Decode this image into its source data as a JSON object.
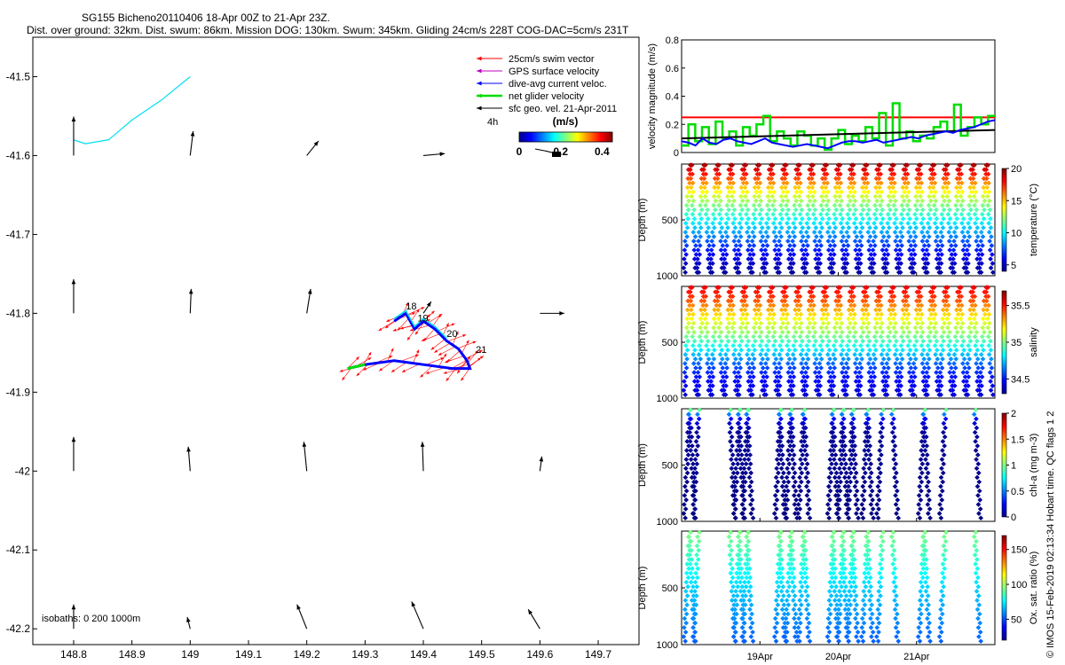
{
  "header": {
    "title": "SG155 Bicheno20110406 18-Apr 00Z to 21-Apr 23Z.",
    "subtitle": "Dist. over ground: 32km. Dist. swum: 86km. Mission DOG: 130km. Swum: 345km. Gliding 24cm/s 228T COG-DAC=5cm/s 231T"
  },
  "credit": "© IMOS 15-Feb-2019 02:13:34 Hobart time. QC flags 1  2",
  "colors": {
    "swim": "#ff0000",
    "gps": "#c000c0",
    "dac": "#0000ff",
    "net": "#00dd00",
    "geo": "#000000",
    "coast": "#00e0f0"
  },
  "chart_data": [
    {
      "type": "scatter",
      "name": "map",
      "xlim": [
        148.73,
        149.77
      ],
      "ylim": [
        -42.22,
        -41.45
      ],
      "xticks": [
        "148.8",
        "148.9",
        "149",
        "149.1",
        "149.2",
        "149.3",
        "149.4",
        "149.5",
        "149.6",
        "149.7"
      ],
      "yticks": [
        "-41.5",
        "-41.6",
        "-41.7",
        "-41.8",
        "-41.9",
        "-42",
        "-42.1",
        "-42.2"
      ],
      "isobaths_label": "isobaths: 0   200  1000m",
      "legend": [
        "25cm/s swim vector",
        "GPS surface velocity",
        "dive-avg current veloc.",
        "net glider velocity",
        "sfc geo. vel. 21-Apr-2011"
      ],
      "time_label": "4h",
      "colorbar": {
        "label": "(m/s)",
        "ticks": [
          "0",
          "0.2",
          "0.4"
        ],
        "range": [
          0,
          0.45
        ]
      },
      "day_labels": [
        {
          "text": "18",
          "lon": 149.37,
          "lat": -41.795
        },
        {
          "text": "19",
          "lon": 149.39,
          "lat": -41.81
        },
        {
          "text": "20",
          "lon": 149.44,
          "lat": -41.83
        },
        {
          "text": "21",
          "lon": 149.49,
          "lat": -41.85
        }
      ],
      "coast": [
        [
          149.0,
          -41.5
        ],
        [
          148.95,
          -41.53
        ],
        [
          148.9,
          -41.555
        ],
        [
          148.86,
          -41.58
        ],
        [
          148.82,
          -41.585
        ],
        [
          148.8,
          -41.58
        ]
      ],
      "track": [
        [
          149.35,
          -41.81
        ],
        [
          149.37,
          -41.8
        ],
        [
          149.385,
          -41.82
        ],
        [
          149.4,
          -41.81
        ],
        [
          149.42,
          -41.82
        ],
        [
          149.44,
          -41.835
        ],
        [
          149.46,
          -41.845
        ],
        [
          149.475,
          -41.86
        ],
        [
          149.48,
          -41.87
        ],
        [
          149.45,
          -41.87
        ],
        [
          149.4,
          -41.865
        ],
        [
          149.35,
          -41.86
        ],
        [
          149.3,
          -41.865
        ],
        [
          149.27,
          -41.87
        ]
      ],
      "geo_arrows": [
        {
          "lon": 148.8,
          "lat": -41.6,
          "u": 0.0,
          "v": 0.4
        },
        {
          "lon": 149.0,
          "lat": -41.6,
          "u": 0.03,
          "v": 0.25
        },
        {
          "lon": 149.2,
          "lat": -41.6,
          "u": 0.12,
          "v": 0.15
        },
        {
          "lon": 149.4,
          "lat": -41.6,
          "u": 0.22,
          "v": 0.02
        },
        {
          "lon": 148.8,
          "lat": -41.8,
          "u": 0.0,
          "v": 0.35
        },
        {
          "lon": 149.0,
          "lat": -41.8,
          "u": 0.01,
          "v": 0.25
        },
        {
          "lon": 149.2,
          "lat": -41.8,
          "u": 0.04,
          "v": 0.25
        },
        {
          "lon": 149.4,
          "lat": -41.8,
          "u": 0.08,
          "v": 0.12
        },
        {
          "lon": 149.6,
          "lat": -41.8,
          "u": 0.25,
          "v": 0.0
        },
        {
          "lon": 148.8,
          "lat": -42.0,
          "u": 0.0,
          "v": 0.35
        },
        {
          "lon": 149.0,
          "lat": -42.0,
          "u": -0.02,
          "v": 0.25
        },
        {
          "lon": 149.2,
          "lat": -42.0,
          "u": -0.03,
          "v": 0.3
        },
        {
          "lon": 149.4,
          "lat": -42.0,
          "u": -0.01,
          "v": 0.3
        },
        {
          "lon": 149.6,
          "lat": -42.0,
          "u": 0.02,
          "v": 0.15
        },
        {
          "lon": 148.8,
          "lat": -42.2,
          "u": 0.0,
          "v": 0.25
        },
        {
          "lon": 149.0,
          "lat": -42.2,
          "u": -0.03,
          "v": 0.12
        },
        {
          "lon": 149.2,
          "lat": -42.2,
          "u": -0.1,
          "v": 0.25
        },
        {
          "lon": 149.4,
          "lat": -42.2,
          "u": -0.12,
          "v": 0.28
        },
        {
          "lon": 149.6,
          "lat": -42.2,
          "u": -0.12,
          "v": 0.2
        }
      ]
    },
    {
      "type": "line",
      "name": "velocity",
      "ylabel": "velocity magnitude (m/s)",
      "ylim": [
        0,
        0.8
      ],
      "yticks": [
        "0",
        "0.2",
        "0.4",
        "0.6",
        "0.8"
      ],
      "swim_speed": 0.25,
      "series": [
        {
          "name": "net",
          "color": "#00dd00",
          "values": [
            0.05,
            0.2,
            0.08,
            0.18,
            0.06,
            0.22,
            0.1,
            0.15,
            0.05,
            0.18,
            0.12,
            0.2,
            0.26,
            0.08,
            0.15,
            0.1,
            0.05,
            0.15,
            0.12,
            0.05,
            0.1,
            0.02,
            0.1,
            0.16,
            0.06,
            0.12,
            0.08,
            0.18,
            0.1,
            0.28,
            0.05,
            0.35,
            0.1,
            0.15,
            0.08,
            0.12,
            0.1,
            0.18,
            0.22,
            0.15,
            0.34,
            0.12,
            0.18,
            0.25,
            0.2,
            0.26
          ]
        },
        {
          "name": "dac",
          "color": "#0000ff",
          "values": [
            0.08,
            0.07,
            0.05,
            0.1,
            0.07,
            0.06,
            0.09,
            0.1,
            0.08,
            0.07,
            0.06,
            0.08,
            0.1,
            0.07,
            0.06,
            0.05,
            0.04,
            0.05,
            0.06,
            0.05,
            0.04,
            0.03,
            0.05,
            0.07,
            0.08,
            0.08,
            0.07,
            0.08,
            0.09,
            0.07,
            0.08,
            0.09,
            0.1,
            0.11,
            0.1,
            0.12,
            0.13,
            0.14,
            0.15,
            0.14,
            0.16,
            0.17,
            0.18,
            0.2,
            0.22,
            0.23
          ]
        },
        {
          "name": "geo",
          "color": "#000000",
          "values": [
            0.1,
            0.16
          ]
        }
      ]
    },
    {
      "type": "scatter",
      "name": "temperature",
      "ylabel": "Depth (m)",
      "cbar_label": "temperature (°C)",
      "ylim": [
        0,
        1000
      ],
      "yticks": [
        "500",
        "1000"
      ],
      "clim": [
        4,
        20
      ],
      "cbar_ticks": [
        "5",
        "10",
        "15",
        "20"
      ],
      "profiles": 46,
      "depth_max": 980,
      "profile": [
        [
          0,
          19.5
        ],
        [
          100,
          17.5
        ],
        [
          200,
          15
        ],
        [
          300,
          13
        ],
        [
          400,
          11.5
        ],
        [
          500,
          10
        ],
        [
          600,
          8.8
        ],
        [
          700,
          7.2
        ],
        [
          800,
          6
        ],
        [
          900,
          5
        ],
        [
          1000,
          4.3
        ]
      ]
    },
    {
      "type": "scatter",
      "name": "salinity",
      "ylabel": "Depth (m)",
      "cbar_label": "salinity",
      "ylim": [
        0,
        1000
      ],
      "yticks": [
        "500",
        "1000"
      ],
      "clim": [
        34.3,
        35.7
      ],
      "cbar_ticks": [
        "34.5",
        "35",
        "35.5"
      ],
      "profiles": 46,
      "depth_max": 980,
      "profile": [
        [
          0,
          35.55
        ],
        [
          100,
          35.45
        ],
        [
          200,
          35.3
        ],
        [
          300,
          35.15
        ],
        [
          400,
          35.05
        ],
        [
          500,
          34.9
        ],
        [
          600,
          34.75
        ],
        [
          700,
          34.6
        ],
        [
          800,
          34.5
        ],
        [
          900,
          34.45
        ],
        [
          1000,
          34.4
        ]
      ]
    },
    {
      "type": "scatter",
      "name": "chla",
      "ylabel": "Depth (m)",
      "cbar_label": "chl-a (mg m-3)",
      "ylim": [
        0,
        1000
      ],
      "yticks": [
        "500",
        "1000"
      ],
      "clim": [
        0,
        2
      ],
      "cbar_ticks": [
        "0",
        "0.5",
        "1",
        "1.5",
        "2"
      ],
      "profile_days": [
        0.0,
        0.07,
        0.12,
        0.6,
        0.66,
        0.72,
        0.77,
        0.83,
        1.2,
        1.26,
        1.34,
        1.41,
        1.51,
        1.58,
        1.9,
        1.96,
        2.03,
        2.09,
        2.16,
        2.22,
        2.35,
        2.42,
        2.55,
        2.75,
        3.1,
        3.17,
        3.38,
        3.84
      ],
      "profile": [
        [
          0,
          1.0
        ],
        [
          20,
          0.9
        ],
        [
          50,
          0.5
        ],
        [
          100,
          0.2
        ],
        [
          200,
          0.05
        ],
        [
          1000,
          0.0
        ]
      ]
    },
    {
      "type": "scatter",
      "name": "oxygen",
      "ylabel": "Depth (m)",
      "cbar_label": "Ox. sat. ratio (%)",
      "ylim": [
        0,
        1000
      ],
      "yticks": [
        "500",
        "1000"
      ],
      "clim": [
        20,
        170
      ],
      "cbar_ticks": [
        "50",
        "100",
        "150"
      ],
      "profile_days": [
        0.0,
        0.07,
        0.12,
        0.6,
        0.66,
        0.72,
        0.77,
        0.83,
        1.2,
        1.26,
        1.34,
        1.41,
        1.51,
        1.58,
        1.9,
        1.96,
        2.03,
        2.09,
        2.16,
        2.22,
        2.35,
        2.42,
        2.55,
        2.75,
        3.1,
        3.17,
        3.38,
        3.84
      ],
      "profile": [
        [
          0,
          95
        ],
        [
          150,
          88
        ],
        [
          300,
          80
        ],
        [
          500,
          70
        ],
        [
          700,
          62
        ],
        [
          900,
          55
        ],
        [
          1000,
          52
        ]
      ]
    }
  ],
  "time_axis": {
    "days": 4,
    "ticks": [
      {
        "day": 1,
        "label": "19Apr"
      },
      {
        "day": 2,
        "label": "20Apr"
      },
      {
        "day": 3,
        "label": "21Apr"
      }
    ]
  }
}
